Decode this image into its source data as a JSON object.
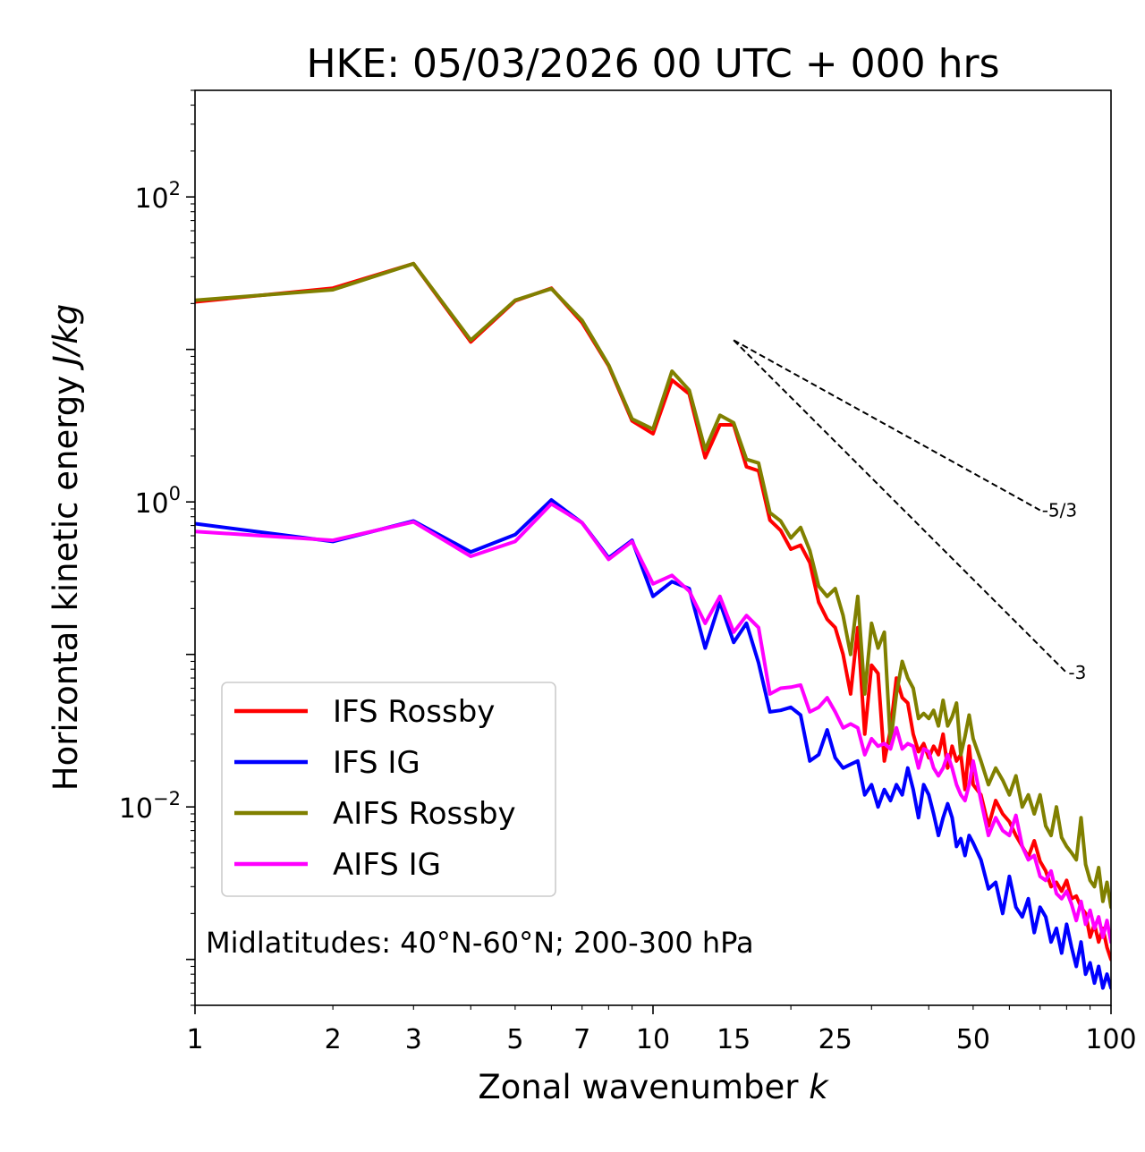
{
  "chart_data": {
    "type": "line",
    "title": "HKE: 05/03/2026 00 UTC + 000 hrs",
    "xlabel_text": "Zonal wavenumber ",
    "xlabel_var": "k",
    "ylabel_text": "Horizontal kinetic energy ",
    "ylabel_unit": "J/kg",
    "xscale": "log",
    "yscale": "log",
    "xlim": [
      1,
      100
    ],
    "ylim": [
      0.0005,
      500
    ],
    "xticks": [
      1,
      2,
      3,
      5,
      7,
      10,
      15,
      25,
      50,
      100
    ],
    "xtick_labels": [
      "1",
      "2",
      "3",
      "5",
      "7",
      "10",
      "15",
      "25",
      "50",
      "100"
    ],
    "yticks": [
      {
        "value": 100,
        "base": "10",
        "exp": "2"
      },
      {
        "value": 1,
        "base": "10",
        "exp": "0"
      },
      {
        "value": 0.01,
        "base": "10",
        "exp": "−2"
      }
    ],
    "annotation": "Midlatitudes: 40°N-60°N; 200-300 hPa",
    "legend_position": "lower-left",
    "reference_lines": [
      {
        "label": "-5/3",
        "slope": -1.6667,
        "x0": 15,
        "y0": 11.5,
        "x1": 70
      },
      {
        "label": "-3",
        "slope": -3,
        "x0": 15,
        "y0": 11.5,
        "x1": 80
      }
    ],
    "series": [
      {
        "name": "IFS Rossby",
        "color": "#ff0000",
        "x": [
          1,
          2,
          3,
          4,
          5,
          6,
          7,
          8,
          9,
          10,
          11,
          12,
          13,
          14,
          15,
          16,
          17,
          18,
          19,
          20,
          21,
          22,
          23,
          24,
          25,
          26,
          27,
          28,
          29,
          30,
          31,
          32,
          33,
          34,
          35,
          36,
          37,
          38,
          39,
          40,
          41,
          42,
          43,
          44,
          45,
          46,
          47,
          48,
          49,
          50,
          52,
          54,
          56,
          58,
          60,
          62,
          64,
          66,
          68,
          70,
          72,
          74,
          76,
          78,
          80,
          82,
          84,
          86,
          88,
          90,
          92,
          94,
          96,
          98,
          100
        ],
        "values": [
          20.5,
          25.2,
          36.5,
          11.2,
          20.8,
          25.2,
          15.0,
          7.8,
          3.4,
          2.8,
          6.3,
          5.1,
          1.95,
          3.2,
          3.2,
          1.7,
          1.6,
          0.76,
          0.65,
          0.49,
          0.52,
          0.4,
          0.22,
          0.17,
          0.15,
          0.1,
          0.055,
          0.15,
          0.03,
          0.085,
          0.075,
          0.02,
          0.032,
          0.07,
          0.052,
          0.048,
          0.03,
          0.023,
          0.026,
          0.021,
          0.025,
          0.022,
          0.03,
          0.018,
          0.025,
          0.02,
          0.022,
          0.013,
          0.025,
          0.014,
          0.012,
          0.0075,
          0.011,
          0.009,
          0.008,
          0.0065,
          0.0055,
          0.0047,
          0.006,
          0.0044,
          0.0038,
          0.003,
          0.0032,
          0.0028,
          0.0033,
          0.0025,
          0.0026,
          0.0022,
          0.002,
          0.0014,
          0.0017,
          0.0013,
          0.0016,
          0.0012,
          0.001
        ]
      },
      {
        "name": "IFS IG",
        "color": "#0000ff",
        "x": [
          1,
          2,
          3,
          4,
          5,
          6,
          7,
          8,
          9,
          10,
          11,
          12,
          13,
          14,
          15,
          16,
          17,
          18,
          19,
          20,
          21,
          22,
          23,
          24,
          25,
          26,
          27,
          28,
          29,
          30,
          31,
          32,
          33,
          34,
          35,
          36,
          37,
          38,
          39,
          40,
          41,
          42,
          43,
          44,
          45,
          46,
          47,
          48,
          49,
          50,
          52,
          54,
          56,
          58,
          60,
          62,
          64,
          66,
          68,
          70,
          72,
          74,
          76,
          78,
          80,
          82,
          84,
          86,
          88,
          90,
          92,
          94,
          96,
          98,
          100
        ],
        "values": [
          0.72,
          0.55,
          0.75,
          0.47,
          0.61,
          1.03,
          0.73,
          0.43,
          0.56,
          0.24,
          0.3,
          0.27,
          0.11,
          0.22,
          0.12,
          0.16,
          0.088,
          0.042,
          0.043,
          0.045,
          0.04,
          0.02,
          0.022,
          0.032,
          0.021,
          0.018,
          0.019,
          0.02,
          0.012,
          0.014,
          0.01,
          0.013,
          0.011,
          0.014,
          0.012,
          0.018,
          0.013,
          0.0085,
          0.014,
          0.012,
          0.009,
          0.0065,
          0.0085,
          0.0105,
          0.0085,
          0.0055,
          0.0062,
          0.0048,
          0.0065,
          0.0058,
          0.0045,
          0.0029,
          0.0032,
          0.002,
          0.0035,
          0.0022,
          0.0019,
          0.0025,
          0.0015,
          0.0022,
          0.0019,
          0.0013,
          0.0016,
          0.0011,
          0.0017,
          0.0012,
          0.0009,
          0.0013,
          0.0008,
          0.00095,
          0.0007,
          0.0009,
          0.00065,
          0.0008,
          0.00065
        ]
      },
      {
        "name": "AIFS Rossby",
        "color": "#808000",
        "x": [
          1,
          2,
          3,
          4,
          5,
          6,
          7,
          8,
          9,
          10,
          11,
          12,
          13,
          14,
          15,
          16,
          17,
          18,
          19,
          20,
          21,
          22,
          23,
          24,
          25,
          26,
          27,
          28,
          29,
          30,
          31,
          32,
          33,
          34,
          35,
          36,
          37,
          38,
          39,
          40,
          41,
          42,
          43,
          44,
          45,
          46,
          47,
          48,
          49,
          50,
          52,
          54,
          56,
          58,
          60,
          62,
          64,
          66,
          68,
          70,
          72,
          74,
          76,
          78,
          80,
          82,
          84,
          86,
          88,
          90,
          92,
          94,
          96,
          98,
          100
        ],
        "values": [
          21.0,
          24.6,
          36.5,
          11.5,
          21.0,
          25.0,
          15.5,
          7.9,
          3.5,
          3.0,
          7.2,
          5.4,
          2.2,
          3.7,
          3.3,
          1.9,
          1.8,
          0.85,
          0.75,
          0.58,
          0.68,
          0.48,
          0.28,
          0.24,
          0.27,
          0.18,
          0.1,
          0.24,
          0.055,
          0.16,
          0.11,
          0.14,
          0.026,
          0.055,
          0.09,
          0.07,
          0.06,
          0.038,
          0.041,
          0.038,
          0.043,
          0.034,
          0.05,
          0.034,
          0.039,
          0.048,
          0.022,
          0.029,
          0.04,
          0.028,
          0.02,
          0.014,
          0.018,
          0.015,
          0.012,
          0.016,
          0.01,
          0.012,
          0.009,
          0.012,
          0.0075,
          0.0065,
          0.01,
          0.0063,
          0.0055,
          0.005,
          0.0045,
          0.0085,
          0.0042,
          0.0033,
          0.003,
          0.004,
          0.0024,
          0.0032,
          0.0022
        ]
      },
      {
        "name": "AIFS IG",
        "color": "#ff00ff",
        "x": [
          1,
          2,
          3,
          4,
          5,
          6,
          7,
          8,
          9,
          10,
          11,
          12,
          13,
          14,
          15,
          16,
          17,
          18,
          19,
          20,
          21,
          22,
          23,
          24,
          25,
          26,
          27,
          28,
          29,
          30,
          31,
          32,
          33,
          34,
          35,
          36,
          37,
          38,
          39,
          40,
          41,
          42,
          43,
          44,
          45,
          46,
          47,
          48,
          49,
          50,
          52,
          54,
          56,
          58,
          60,
          62,
          64,
          66,
          68,
          70,
          72,
          74,
          76,
          78,
          80,
          82,
          84,
          86,
          88,
          90,
          92,
          94,
          96,
          98,
          100
        ],
        "values": [
          0.64,
          0.56,
          0.74,
          0.44,
          0.55,
          0.97,
          0.73,
          0.42,
          0.55,
          0.29,
          0.33,
          0.26,
          0.16,
          0.24,
          0.14,
          0.18,
          0.15,
          0.055,
          0.06,
          0.061,
          0.063,
          0.042,
          0.045,
          0.052,
          0.042,
          0.033,
          0.035,
          0.033,
          0.022,
          0.028,
          0.025,
          0.026,
          0.024,
          0.033,
          0.024,
          0.026,
          0.025,
          0.018,
          0.024,
          0.023,
          0.018,
          0.016,
          0.018,
          0.022,
          0.018,
          0.014,
          0.012,
          0.011,
          0.014,
          0.02,
          0.011,
          0.0065,
          0.0085,
          0.007,
          0.0065,
          0.0088,
          0.0055,
          0.0045,
          0.0048,
          0.0035,
          0.0033,
          0.0038,
          0.0027,
          0.0025,
          0.0028,
          0.0023,
          0.0018,
          0.0024,
          0.0017,
          0.0021,
          0.0016,
          0.0019,
          0.0014,
          0.0018,
          0.0013
        ]
      }
    ]
  }
}
